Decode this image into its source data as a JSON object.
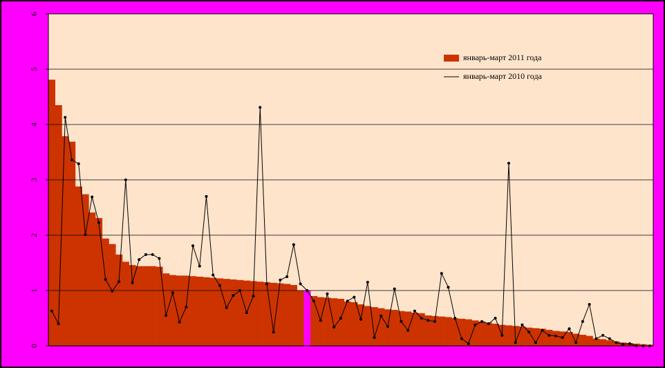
{
  "chart_data": {
    "type": "bar",
    "ylim": [
      0,
      6
    ],
    "yticks": [
      0,
      1,
      2,
      3,
      4,
      5,
      6
    ],
    "grid": true,
    "legend": "upper right",
    "highlight": {
      "index": 38,
      "color": "#ff00ff"
    },
    "series": [
      {
        "name": "январь-март 2011 года",
        "color": "#cc3300",
        "kind": "bar",
        "values": [
          4.81,
          4.35,
          3.79,
          3.69,
          2.88,
          2.74,
          2.41,
          2.31,
          1.94,
          1.84,
          1.65,
          1.52,
          1.46,
          1.44,
          1.44,
          1.44,
          1.43,
          1.31,
          1.28,
          1.27,
          1.27,
          1.26,
          1.25,
          1.24,
          1.23,
          1.22,
          1.21,
          1.2,
          1.19,
          1.18,
          1.17,
          1.16,
          1.15,
          1.14,
          1.13,
          1.12,
          1.1,
          1.0,
          1.0,
          0.9,
          0.88,
          0.87,
          0.86,
          0.85,
          0.8,
          0.79,
          0.75,
          0.72,
          0.7,
          0.68,
          0.66,
          0.65,
          0.63,
          0.62,
          0.6,
          0.59,
          0.55,
          0.54,
          0.53,
          0.52,
          0.5,
          0.49,
          0.48,
          0.46,
          0.44,
          0.42,
          0.4,
          0.38,
          0.37,
          0.36,
          0.35,
          0.33,
          0.32,
          0.31,
          0.29,
          0.27,
          0.26,
          0.25,
          0.22,
          0.2,
          0.18,
          0.13,
          0.12,
          0.1,
          0.08,
          0.06,
          0.05,
          0.04,
          0.03,
          0.02
        ]
      },
      {
        "name": "январь-март 2010 года",
        "color": "#000000",
        "kind": "line",
        "values": [
          0.63,
          0.4,
          4.13,
          3.36,
          3.29,
          2.01,
          2.69,
          2.23,
          1.2,
          0.99,
          1.16,
          3.0,
          1.14,
          1.56,
          1.65,
          1.65,
          1.58,
          0.55,
          0.96,
          0.43,
          0.7,
          1.81,
          1.44,
          2.7,
          1.28,
          1.09,
          0.69,
          0.91,
          1.0,
          0.6,
          0.9,
          4.31,
          1.12,
          0.25,
          1.19,
          1.25,
          1.83,
          1.12,
          1.0,
          0.81,
          0.46,
          0.94,
          0.34,
          0.5,
          0.81,
          0.88,
          0.48,
          1.15,
          0.15,
          0.54,
          0.35,
          1.03,
          0.44,
          0.28,
          0.63,
          0.5,
          0.46,
          0.44,
          1.31,
          1.06,
          0.5,
          0.13,
          0.04,
          0.38,
          0.44,
          0.4,
          0.5,
          0.19,
          3.3,
          0.06,
          0.38,
          0.25,
          0.06,
          0.28,
          0.19,
          0.18,
          0.15,
          0.31,
          0.06,
          0.44,
          0.75,
          0.13,
          0.19,
          0.13,
          0.06,
          0.03,
          0.04,
          0.0,
          0.0,
          0.0
        ]
      }
    ]
  }
}
